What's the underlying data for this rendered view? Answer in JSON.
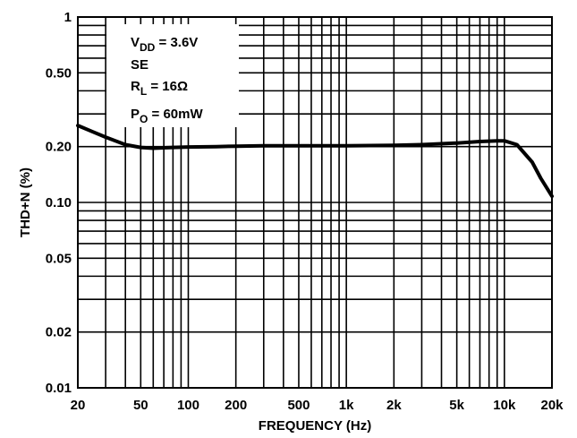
{
  "chart_data": {
    "type": "line",
    "xlabel": "FREQUENCY (Hz)",
    "ylabel": "THD+N (%)",
    "x_scale": "log",
    "y_scale": "log",
    "xlim": [
      20,
      20000
    ],
    "ylim": [
      0.01,
      1
    ],
    "grid": true,
    "x_ticks": [
      {
        "value": 20,
        "label": "20"
      },
      {
        "value": 50,
        "label": "50"
      },
      {
        "value": 100,
        "label": "100"
      },
      {
        "value": 200,
        "label": "200"
      },
      {
        "value": 500,
        "label": "500"
      },
      {
        "value": 1000,
        "label": "1k"
      },
      {
        "value": 2000,
        "label": "2k"
      },
      {
        "value": 5000,
        "label": "5k"
      },
      {
        "value": 10000,
        "label": "10k"
      },
      {
        "value": 20000,
        "label": "20k"
      }
    ],
    "y_ticks": [
      {
        "value": 0.01,
        "label": "0.01"
      },
      {
        "value": 0.02,
        "label": "0.02"
      },
      {
        "value": 0.05,
        "label": "0.05"
      },
      {
        "value": 0.1,
        "label": "0.10"
      },
      {
        "value": 0.2,
        "label": "0.20"
      },
      {
        "value": 0.5,
        "label": "0.50"
      },
      {
        "value": 1,
        "label": "1"
      }
    ],
    "annotations": [
      {
        "main": "V",
        "sub": "DD",
        "rest": " = 3.6V"
      },
      {
        "main": "SE",
        "sub": "",
        "rest": ""
      },
      {
        "main": "R",
        "sub": "L",
        "rest": " = 16Ω"
      },
      {
        "main": "P",
        "sub": "O",
        "rest": " = 60mW"
      }
    ],
    "series": [
      {
        "x": [
          20,
          25,
          30,
          40,
          50,
          60,
          70,
          80,
          100,
          150,
          200,
          300,
          500,
          700,
          1000,
          2000,
          3000,
          5000,
          7000,
          9000,
          10000,
          12000,
          15000,
          17000,
          20000
        ],
        "y": [
          0.26,
          0.24,
          0.225,
          0.205,
          0.198,
          0.196,
          0.197,
          0.198,
          0.199,
          0.2,
          0.201,
          0.202,
          0.202,
          0.202,
          0.202,
          0.203,
          0.205,
          0.209,
          0.213,
          0.215,
          0.215,
          0.205,
          0.165,
          0.135,
          0.108
        ]
      }
    ]
  }
}
